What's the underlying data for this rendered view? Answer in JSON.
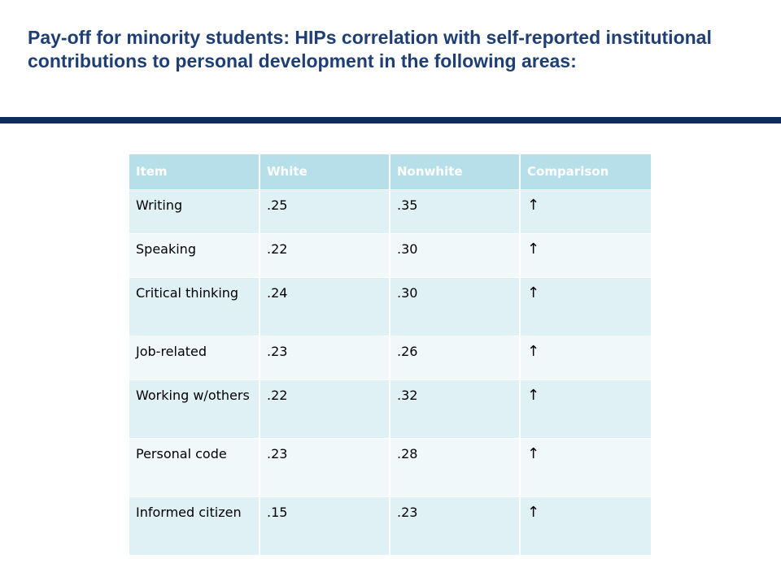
{
  "slide": {
    "title": "Pay-off for minority students: HIPs correlation with self-reported institutional contributions to personal development in the following areas:"
  },
  "table": {
    "headers": [
      "Item",
      "White",
      "Nonwhite",
      "Comparison"
    ],
    "rows": [
      {
        "item": "Writing",
        "white": ".25",
        "nonwhite": ".35",
        "comparison": "↑"
      },
      {
        "item": "Speaking",
        "white": ".22",
        "nonwhite": ".30",
        "comparison": "↑"
      },
      {
        "item": "Critical thinking",
        "white": ".24",
        "nonwhite": ".30",
        "comparison": "↑"
      },
      {
        "item": "Job-related",
        "white": ".23",
        "nonwhite": ".26",
        "comparison": "↑"
      },
      {
        "item": "Working w/others",
        "white": ".22",
        "nonwhite": ".32",
        "comparison": "↑"
      },
      {
        "item": "Personal code",
        "white": ".23",
        "nonwhite": ".28",
        "comparison": "↑"
      },
      {
        "item": "Informed citizen",
        "white": ".15",
        "nonwhite": ".23",
        "comparison": "↑"
      }
    ]
  },
  "colors": {
    "title": "#1f3f74",
    "rule": "#0f2d5c",
    "header_bg": "#b7dfe9",
    "row_odd_bg": "#e0f1f6",
    "row_even_bg": "#f0f8fa"
  }
}
